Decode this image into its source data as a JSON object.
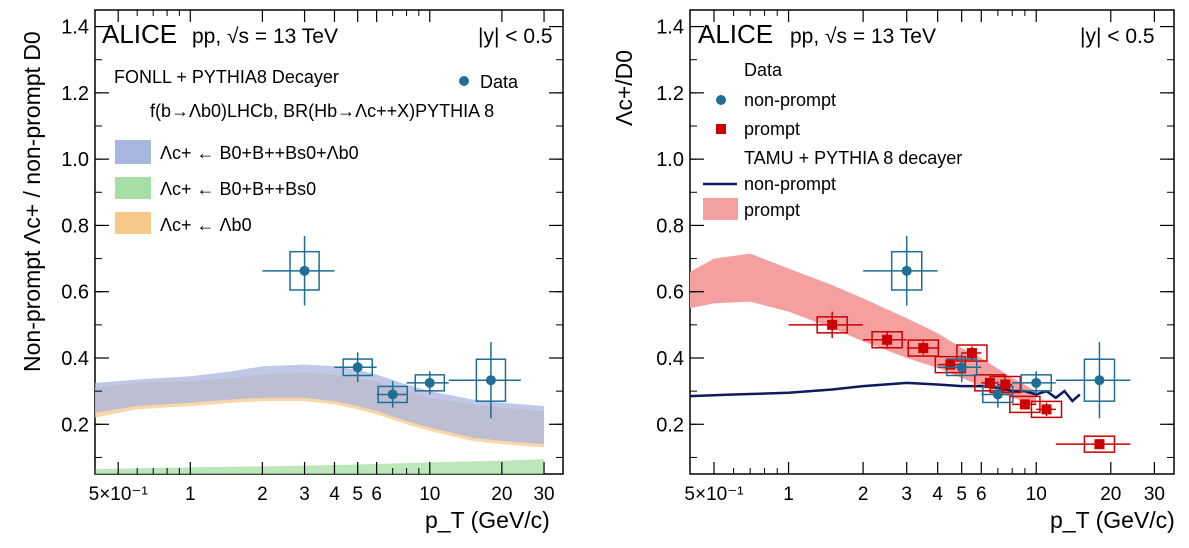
{
  "chart_data": [
    {
      "type": "scatter",
      "experiment": "ALICE",
      "system": "pp, √s = 13 TeV",
      "rapidity": "|y| < 0.5",
      "xlabel": "p_T (GeV/c)",
      "ylabel": "Non-prompt Λc+ / non-prompt D0",
      "x_scale": "log",
      "xlim": [
        0.4,
        36
      ],
      "ylim": [
        0.05,
        1.45
      ],
      "x_ticks": [
        {
          "v": 0.5,
          "label": "5×10⁻¹"
        },
        {
          "v": 1,
          "label": "1"
        },
        {
          "v": 2,
          "label": "2"
        },
        {
          "v": 3,
          "label": "3"
        },
        {
          "v": 4,
          "label": "4"
        },
        {
          "v": 5,
          "label": "5"
        },
        {
          "v": 6,
          "label": "6"
        },
        {
          "v": 10,
          "label": "10"
        },
        {
          "v": 20,
          "label": "20"
        },
        {
          "v": 30,
          "label": "30"
        }
      ],
      "y_ticks": [
        0.2,
        0.4,
        0.6,
        0.8,
        1.0,
        1.2,
        1.4
      ],
      "y_tick_labels": [
        "0.2",
        "0.4",
        "0.6",
        "0.8",
        "1.0",
        "1.2",
        "1.4"
      ],
      "legend_header": "FONLL + PYTHIA8 Decayer",
      "legend_formula": "f(b→Λb0)LHCb, BR(Hb→Λc++X)PYTHIA 8",
      "legend_entries": [
        {
          "label": "Λc+ ← B0+B++Bs0+Λb0",
          "color": "#a9b6df"
        },
        {
          "label": "Λc+ ← B0+B++Bs0",
          "color": "#a6dfa3"
        },
        {
          "label": "Λc+ ← Λb0",
          "color": "#f6c98b"
        },
        {
          "label": "Data",
          "color": "#1f6e96"
        }
      ],
      "series": [
        {
          "name": "Data",
          "color": "#1f6e96",
          "points": [
            {
              "x": 3,
              "y": 0.663,
              "xlo": 2,
              "xhi": 4,
              "stat": 0.105
            },
            {
              "x": 5,
              "y": 0.372,
              "xlo": 4,
              "xhi": 6,
              "stat": 0.045
            },
            {
              "x": 7,
              "y": 0.29,
              "xlo": 6,
              "xhi": 8,
              "stat": 0.04
            },
            {
              "x": 10,
              "y": 0.325,
              "xlo": 8,
              "xhi": 12,
              "stat": 0.035
            },
            {
              "x": 18,
              "y": 0.333,
              "xlo": 12,
              "xhi": 24,
              "stat": 0.115
            }
          ]
        }
      ],
      "bands": [
        {
          "name": "Λc+ ← Λb0",
          "color": "#f6c98b",
          "x": [
            0.4,
            0.6,
            1,
            1.5,
            2,
            3,
            4,
            5,
            6,
            8,
            10,
            15,
            20,
            30
          ],
          "low": [
            0.22,
            0.245,
            0.255,
            0.265,
            0.27,
            0.27,
            0.26,
            0.245,
            0.23,
            0.2,
            0.18,
            0.15,
            0.14,
            0.13
          ],
          "high": [
            0.31,
            0.325,
            0.33,
            0.34,
            0.35,
            0.355,
            0.35,
            0.34,
            0.33,
            0.3,
            0.28,
            0.26,
            0.25,
            0.24
          ]
        },
        {
          "name": "Λc+ ← B0+B++Bs0+Λb0",
          "color": "#a9b6df",
          "x": [
            0.4,
            0.6,
            1,
            1.5,
            2,
            3,
            4,
            5,
            6,
            8,
            10,
            15,
            20,
            30
          ],
          "low": [
            0.235,
            0.255,
            0.265,
            0.275,
            0.28,
            0.28,
            0.27,
            0.255,
            0.24,
            0.21,
            0.19,
            0.16,
            0.15,
            0.14
          ],
          "high": [
            0.325,
            0.335,
            0.345,
            0.36,
            0.375,
            0.38,
            0.375,
            0.365,
            0.35,
            0.32,
            0.3,
            0.275,
            0.265,
            0.255
          ]
        },
        {
          "name": "Λc+ ← B0+B++Bs0",
          "color": "#a6dfa3",
          "x": [
            0.4,
            1,
            3,
            6,
            10,
            20,
            30
          ],
          "low": [
            0.05,
            0.05,
            0.05,
            0.05,
            0.05,
            0.05,
            0.05
          ],
          "high": [
            0.065,
            0.07,
            0.075,
            0.08,
            0.085,
            0.09,
            0.095
          ]
        }
      ]
    },
    {
      "type": "scatter",
      "experiment": "ALICE",
      "system": "pp, √s = 13 TeV",
      "rapidity": "|y| < 0.5",
      "xlabel": "p_T (GeV/c)",
      "ylabel": "Λc+/D0",
      "x_scale": "log",
      "xlim": [
        0.4,
        36
      ],
      "ylim": [
        0.05,
        1.45
      ],
      "x_ticks": [
        {
          "v": 0.5,
          "label": "5×10⁻¹"
        },
        {
          "v": 1,
          "label": "1"
        },
        {
          "v": 2,
          "label": "2"
        },
        {
          "v": 3,
          "label": "3"
        },
        {
          "v": 4,
          "label": "4"
        },
        {
          "v": 5,
          "label": "5"
        },
        {
          "v": 6,
          "label": "6"
        },
        {
          "v": 10,
          "label": "10"
        },
        {
          "v": 20,
          "label": "20"
        },
        {
          "v": 30,
          "label": "30"
        }
      ],
      "y_ticks": [
        0.2,
        0.4,
        0.6,
        0.8,
        1.0,
        1.2,
        1.4
      ],
      "y_tick_labels": [
        "0.2",
        "0.4",
        "0.6",
        "0.8",
        "1.0",
        "1.2",
        "1.4"
      ],
      "legend_data_header": "Data",
      "legend_model_header": "TAMU + PYTHIA 8 decayer",
      "legend_entries": [
        {
          "label": "non-prompt",
          "color": "#1f6e96"
        },
        {
          "label": "prompt",
          "color": "#cc0000"
        },
        {
          "label": "non-prompt",
          "color": "#0d1b5e"
        },
        {
          "label": "prompt",
          "color": "#f5a0a0"
        }
      ],
      "series": [
        {
          "name": "non-prompt",
          "color": "#1f6e96",
          "points": [
            {
              "x": 3,
              "y": 0.663,
              "xlo": 2,
              "xhi": 4,
              "stat": 0.105
            },
            {
              "x": 5,
              "y": 0.372,
              "xlo": 4,
              "xhi": 6,
              "stat": 0.045
            },
            {
              "x": 7,
              "y": 0.29,
              "xlo": 6,
              "xhi": 8,
              "stat": 0.04
            },
            {
              "x": 10,
              "y": 0.325,
              "xlo": 8,
              "xhi": 12,
              "stat": 0.035
            },
            {
              "x": 18,
              "y": 0.333,
              "xlo": 12,
              "xhi": 24,
              "stat": 0.115
            }
          ]
        },
        {
          "name": "prompt",
          "color": "#cc0000",
          "points": [
            {
              "x": 1.5,
              "y": 0.5,
              "xlo": 1,
              "xhi": 2,
              "stat": 0.04
            },
            {
              "x": 2.5,
              "y": 0.455,
              "xlo": 2,
              "xhi": 3,
              "stat": 0.025
            },
            {
              "x": 3.5,
              "y": 0.43,
              "xlo": 3,
              "xhi": 4,
              "stat": 0.02
            },
            {
              "x": 4.5,
              "y": 0.38,
              "xlo": 4,
              "xhi": 5,
              "stat": 0.015
            },
            {
              "x": 5.5,
              "y": 0.415,
              "xlo": 5,
              "xhi": 6,
              "stat": 0.02
            },
            {
              "x": 6.5,
              "y": 0.325,
              "xlo": 6,
              "xhi": 7,
              "stat": 0.015
            },
            {
              "x": 7.5,
              "y": 0.32,
              "xlo": 7,
              "xhi": 8,
              "stat": 0.015
            },
            {
              "x": 9,
              "y": 0.26,
              "xlo": 8,
              "xhi": 10,
              "stat": 0.015
            },
            {
              "x": 11,
              "y": 0.245,
              "xlo": 10,
              "xhi": 12,
              "stat": 0.02
            },
            {
              "x": 18,
              "y": 0.14,
              "xlo": 12,
              "xhi": 24,
              "stat": 0.015
            }
          ]
        }
      ],
      "bands": [
        {
          "name": "prompt",
          "color": "#f5a0a0",
          "x": [
            0.4,
            0.5,
            0.7,
            1,
            1.5,
            2,
            3,
            4,
            5,
            6,
            8,
            10
          ],
          "low": [
            0.55,
            0.565,
            0.57,
            0.54,
            0.49,
            0.45,
            0.4,
            0.37,
            0.34,
            0.315,
            0.28,
            0.26
          ],
          "high": [
            0.66,
            0.7,
            0.715,
            0.67,
            0.62,
            0.58,
            0.52,
            0.475,
            0.43,
            0.4,
            0.34,
            0.3
          ]
        }
      ],
      "lines": [
        {
          "name": "non-prompt",
          "color": "#0d1b5e",
          "x": [
            0.4,
            0.6,
            1,
            1.5,
            2,
            3,
            4,
            5,
            6,
            7,
            8,
            9,
            10,
            11,
            12,
            13,
            14,
            15
          ],
          "y": [
            0.285,
            0.29,
            0.295,
            0.305,
            0.315,
            0.325,
            0.32,
            0.315,
            0.315,
            0.31,
            0.3,
            0.3,
            0.29,
            0.3,
            0.28,
            0.3,
            0.27,
            0.29
          ]
        }
      ]
    }
  ]
}
